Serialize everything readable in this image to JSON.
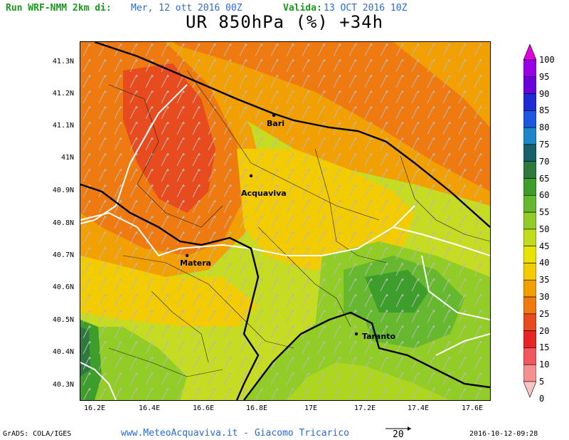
{
  "header": {
    "run_label": "Run WRF-NMM 2km di:",
    "run_date": "Mer, 12 ott 2016 00Z",
    "valid_label": "Valida:",
    "valid_date": "13 OCT 2016 10Z",
    "title": "UR 850hPa (%) +34h"
  },
  "axes": {
    "y_ticks": [
      "41.3N",
      "41.2N",
      "41.1N",
      "41N",
      "40.9N",
      "40.8N",
      "40.7N",
      "40.6N",
      "40.5N",
      "40.4N",
      "40.3N"
    ],
    "x_ticks": [
      "16.2E",
      "16.4E",
      "16.6E",
      "16.8E",
      "17E",
      "17.2E",
      "17.4E",
      "17.6E"
    ]
  },
  "cities": {
    "bari": "Bari",
    "acquaviva": "Acquaviva",
    "matera": "Matera",
    "taranto": "Taranto"
  },
  "colorbar": {
    "labels": [
      "100",
      "95",
      "90",
      "85",
      "80",
      "75",
      "70",
      "65",
      "60",
      "55",
      "50",
      "45",
      "40",
      "35",
      "30",
      "25",
      "20",
      "15",
      "10",
      "5",
      "0"
    ],
    "colors": [
      "#e000e0",
      "#9a00e6",
      "#6a00dc",
      "#1e2ad6",
      "#1a58e0",
      "#1c86c8",
      "#16606a",
      "#2e7a3e",
      "#3e9e2c",
      "#66b82e",
      "#92cc26",
      "#c0dc1a",
      "#e6e400",
      "#f3cc00",
      "#f2a000",
      "#ee7a10",
      "#e84c1e",
      "#e82424",
      "#f0585e",
      "#f49090",
      "#f8c4c4"
    ]
  },
  "footer": {
    "grads": "GrADS: COLA/IGES",
    "credit": "www.MeteoAcquaviva.it - Giacomo Tricarico",
    "vector_ref": "20",
    "timestamp": "2016-10-12-09:28"
  }
}
